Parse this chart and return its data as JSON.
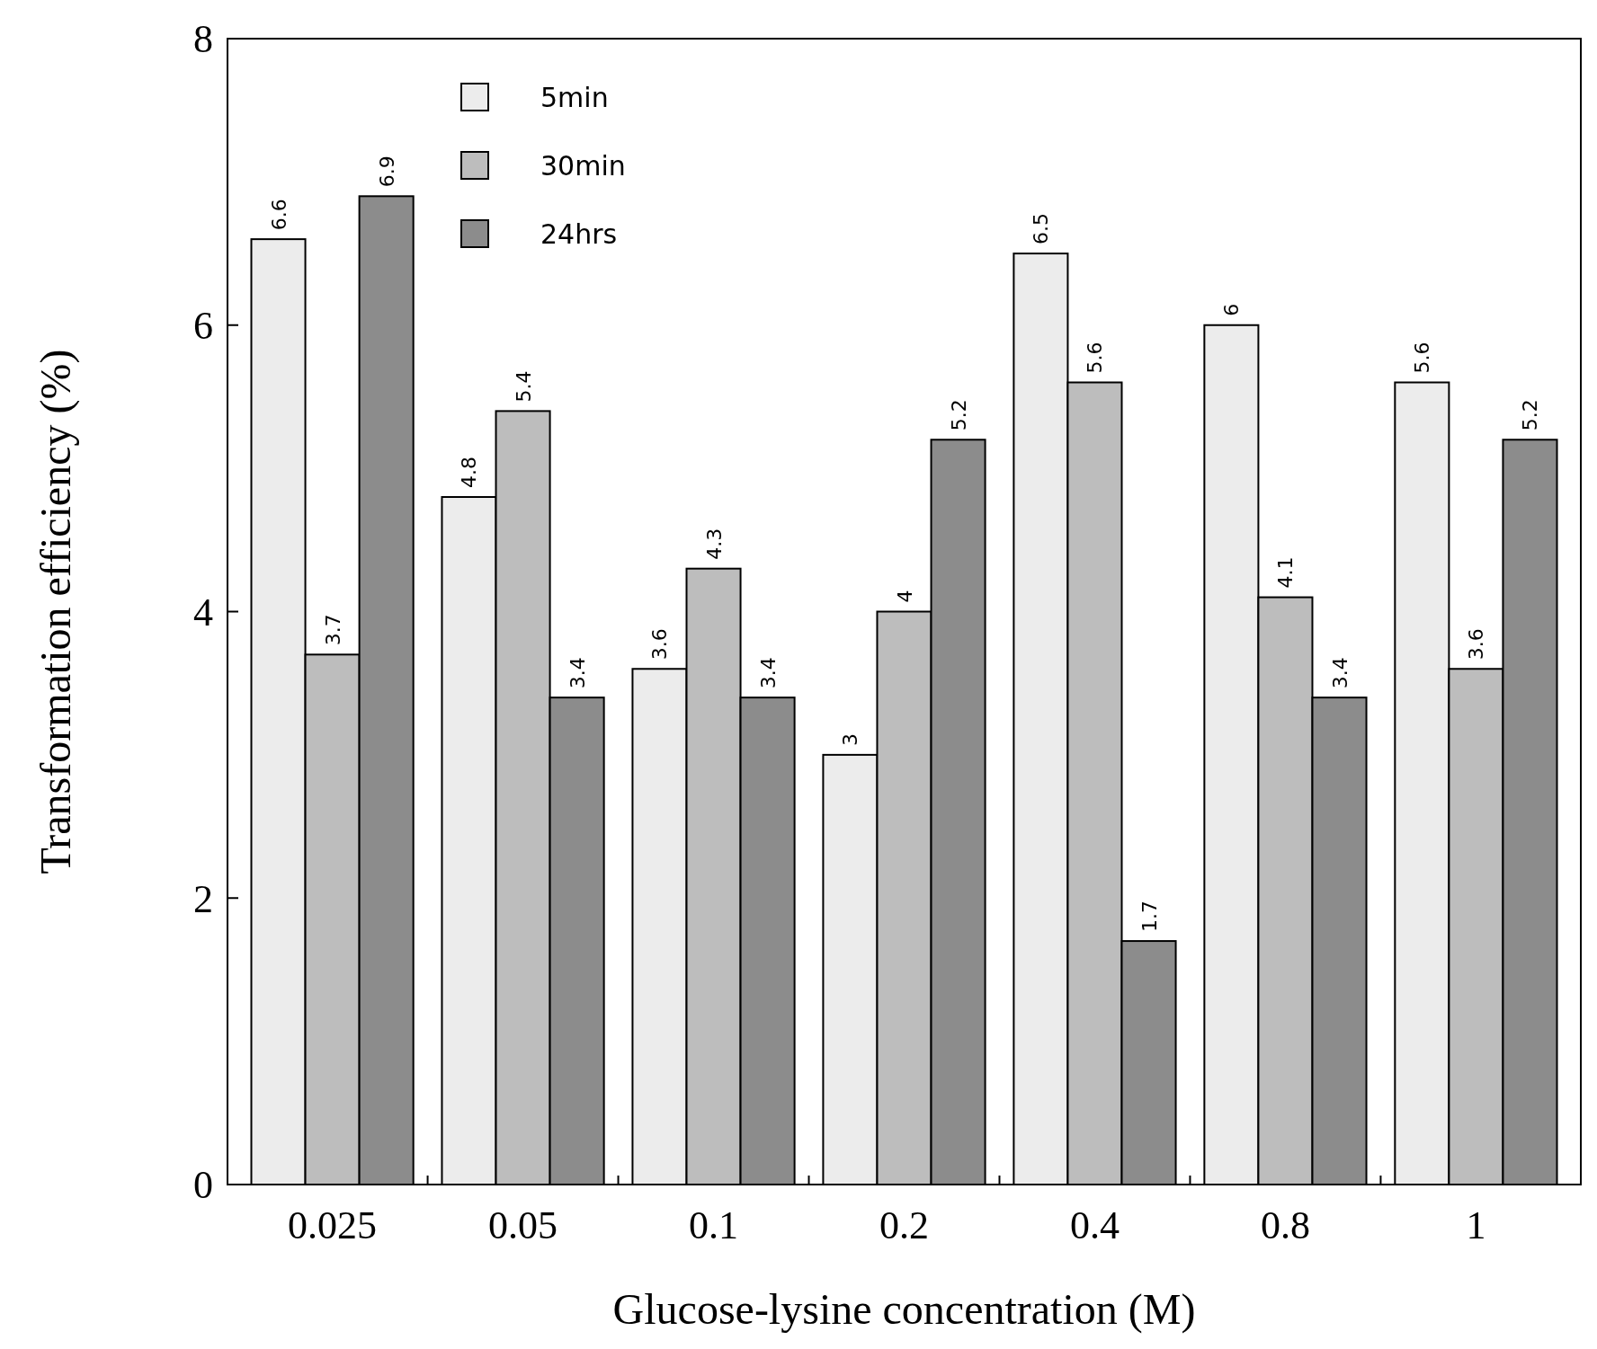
{
  "chart_data": {
    "type": "bar",
    "xlabel": "Glucose-lysine concentration (M)",
    "ylabel": "Transformation efficiency (%)",
    "categories": [
      "0.025",
      "0.05",
      "0.1",
      "0.2",
      "0.4",
      "0.8",
      "1"
    ],
    "series": [
      {
        "name": "5min",
        "color": "#ececec",
        "values": [
          6.6,
          4.8,
          3.6,
          3,
          6.5,
          6,
          5.6
        ]
      },
      {
        "name": "30min",
        "color": "#bdbdbd",
        "values": [
          3.7,
          5.4,
          4.3,
          4,
          5.6,
          4.1,
          3.6
        ]
      },
      {
        "name": "24hrs",
        "color": "#8c8c8c",
        "values": [
          6.9,
          3.4,
          3.4,
          5.2,
          1.7,
          3.4,
          5.2
        ]
      }
    ],
    "ylim": [
      0,
      8
    ],
    "yticks": [
      0,
      2,
      4,
      6,
      8
    ],
    "data_labels": true,
    "legend": "top left",
    "grid": false
  }
}
